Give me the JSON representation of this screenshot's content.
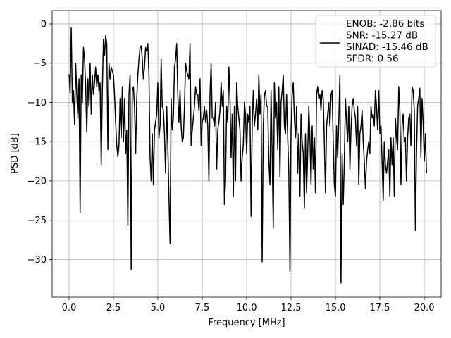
{
  "chart_data": {
    "type": "line",
    "title": "",
    "xlabel": "Frequency [MHz]",
    "ylabel": "PSD [dB]",
    "xlim": [
      -0.95,
      20.95
    ],
    "ylim": [
      -34.8,
      1.7
    ],
    "xticks": [
      0.0,
      2.5,
      5.0,
      7.5,
      10.0,
      12.5,
      15.0,
      17.5,
      20.0
    ],
    "xtick_labels": [
      "0.0",
      "2.5",
      "5.0",
      "7.5",
      "10.0",
      "12.5",
      "15.0",
      "17.5",
      "20.0"
    ],
    "yticks": [
      0,
      -5,
      -10,
      -15,
      -20,
      -25,
      -30
    ],
    "ytick_labels": [
      "0",
      "−5",
      "−10",
      "−15",
      "−20",
      "−25",
      "−30"
    ],
    "grid": true,
    "legend_position": "upper-right",
    "line_color": "#000000",
    "legend_entries": [
      "ENOB: -2.86 bits",
      "SNR: -15.27 dB",
      "SINAD: -15.46 dB",
      "SFDR: 0.56"
    ],
    "series": [
      {
        "x_start": 0.0,
        "x_step": 0.0625,
        "values": [
          -6.4,
          -8.8,
          -0.5,
          -10.0,
          -8.5,
          -12.8,
          -5.0,
          -8.9,
          -12.0,
          -7.0,
          -24.0,
          -6.5,
          -10.0,
          -3.0,
          -4.5,
          -8.0,
          -13.8,
          -7.0,
          -10.5,
          -5.0,
          -11.5,
          -6.5,
          -9.0,
          -7.5,
          -5.5,
          -8.0,
          -6.5,
          -8.5,
          -7.5,
          -18.0,
          -8.5,
          -2.0,
          -4.0,
          -1.5,
          -2.5,
          -16.0,
          -5.0,
          -7.0,
          -5.5,
          -6.0,
          -6.5,
          -9.0,
          -12.5,
          -15.5,
          -16.9,
          -15.5,
          -9.5,
          -14.5,
          -8.0,
          -15.0,
          -9.5,
          -16.5,
          -13.5,
          -25.7,
          -9.0,
          -6.5,
          -31.3,
          -8.5,
          -8.0,
          -10.5,
          -16.5,
          -9.5,
          -6.5,
          -4.5,
          -3.0,
          -2.8,
          -4.5,
          -7.0,
          -5.5,
          -3.0,
          -3.5,
          -2.5,
          -6.5,
          -17.0,
          -20.0,
          -14.0,
          -20.5,
          -13.5,
          -12.5,
          -11.5,
          -7.5,
          -14.5,
          -13.0,
          -4.5,
          -10.5,
          -11.0,
          -14.0,
          -19.0,
          -10.5,
          -15.5,
          -22.0,
          -28.0,
          -9.5,
          -13.5,
          -12.0,
          -5.5,
          -4.5,
          -2.5,
          -9.0,
          -12.5,
          -8.5,
          -13.0,
          -15.0,
          -14.5,
          -10.5,
          -5.0,
          -6.0,
          -6.5,
          -7.0,
          -2.5,
          -15.5,
          -13.5,
          -12.0,
          -10.5,
          -8.0,
          -9.0,
          -9.0,
          -11.0,
          -7.0,
          -15.5,
          -12.5,
          -12.0,
          -10.5,
          -12.5,
          -11.0,
          -13.0,
          -20.0,
          -9.0,
          -5.0,
          -12.0,
          -12.0,
          -13.0,
          -10.0,
          -18.5,
          -13.5,
          -12.5,
          -11.0,
          -7.5,
          -10.5,
          -8.5,
          -23.0,
          -20.0,
          -10.5,
          -12.5,
          -5.5,
          -9.5,
          -17.0,
          -11.5,
          -22.0,
          -10.5,
          -20.0,
          -7.5,
          -10.5,
          -12.0,
          -13.5,
          -20.0,
          -17.0,
          -15.5,
          -10.0,
          -11.5,
          -16.5,
          -11.5,
          -12.5,
          -10.5,
          -24.5,
          -13.0,
          -8.5,
          -13.0,
          -11.5,
          -9.5,
          -13.5,
          -6.5,
          -11.5,
          -9.0,
          -30.3,
          -13.0,
          -9.0,
          -8.5,
          -10.5,
          -10.5,
          -17.5,
          -20.5,
          -8.5,
          -16.5,
          -26.0,
          -7.5,
          -12.0,
          -10.0,
          -16.0,
          -8.0,
          -19.5,
          -10.0,
          -8.5,
          -6.5,
          -13.0,
          -14.0,
          -9.0,
          -14.5,
          -19.0,
          -31.5,
          -13.5,
          -9.0,
          -7.5,
          -12.0,
          -14.5,
          -10.5,
          -19.0,
          -14.0,
          -22.0,
          -11.5,
          -15.0,
          -16.5,
          -23.5,
          -14.0,
          -21.5,
          -16.5,
          -10.5,
          -14.5,
          -20.5,
          -13.0,
          -18.5,
          -14.5,
          -21.5,
          -9.0,
          -8.0,
          -9.5,
          -9.0,
          -11.0,
          -8.5,
          -9.5,
          -15.0,
          -21.5,
          -13.0,
          -11.5,
          -10.0,
          -13.0,
          -9.0,
          -8.5,
          -15.0,
          -20.5,
          -22.0,
          -13.0,
          -17.0,
          -12.5,
          -6.5,
          -33.0,
          -16.5,
          -23.0,
          -17.5,
          -9.5,
          -12.5,
          -15.0,
          -10.5,
          -18.5,
          -13.5,
          -10.5,
          -9.5,
          -11.0,
          -12.0,
          -15.5,
          -10.5,
          -20.5,
          -14.0,
          -13.0,
          -11.0,
          -15.0,
          -17.5,
          -21.0,
          -17.5,
          -16.0,
          -15.0,
          -16.5,
          -10.5,
          -12.0,
          -11.5,
          -13.0,
          -8.5,
          -10.5,
          -13.5,
          -8.5,
          -14.0,
          -13.0,
          -17.5,
          -22.5,
          -15.0,
          -18.0,
          -19.0,
          -17.5,
          -16.0,
          -22.0,
          -14.5,
          -18.0,
          -14.5,
          -22.0,
          -12.0,
          -14.5,
          -16.0,
          -8.0,
          -11.0,
          -20.5,
          -13.0,
          -11.5,
          -15.0,
          -14.5,
          -20.0,
          -14.5,
          -12.0,
          -11.5,
          -15.5,
          -8.0,
          -8.5,
          -11.0,
          -26.3,
          -16.5,
          -10.5,
          -9.5,
          -8.2,
          -17.0,
          -9.5,
          -12.5,
          -17.5,
          -14.0,
          -19.0
        ]
      }
    ]
  }
}
